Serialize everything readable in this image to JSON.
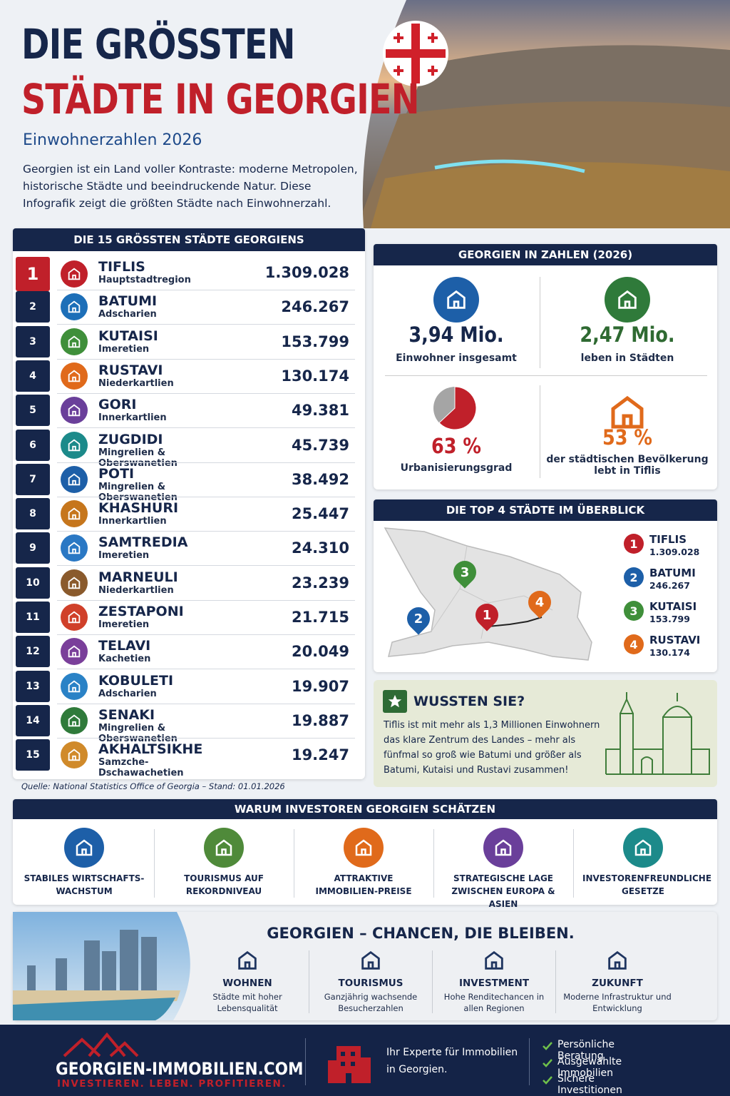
{
  "header": {
    "title_line1": "DIE GRÖSSTEN",
    "title_line2": "STÄDTE IN GEORGIEN",
    "subtitle": "Einwohnerzahlen 2026",
    "intro": "Georgien ist ein Land voller Kontraste: moderne Metropolen, historische Städte und beeindruckende Natur. Diese Infografik zeigt die größten Städte nach Einwohnerzahl."
  },
  "ranking": {
    "title": "DIE 15 GRÖSSTEN STÄDTE GEORGIENS",
    "rows": [
      {
        "rank": 1,
        "name": "TIFLIS",
        "region": "Hauptstadtregion",
        "population": "1.309.028"
      },
      {
        "rank": 2,
        "name": "BATUMI",
        "region": "Adscharien",
        "population": "246.267"
      },
      {
        "rank": 3,
        "name": "KUTAISI",
        "region": "Imeretien",
        "population": "153.799"
      },
      {
        "rank": 4,
        "name": "RUSTAVI",
        "region": "Niederkartlien",
        "population": "130.174"
      },
      {
        "rank": 5,
        "name": "GORI",
        "region": "Innerkartlien",
        "population": "49.381"
      },
      {
        "rank": 6,
        "name": "ZUGDIDI",
        "region": "Mingrelien & Oberswanetien",
        "population": "45.739"
      },
      {
        "rank": 7,
        "name": "POTI",
        "region": "Mingrelien & Oberswanetien",
        "population": "38.492"
      },
      {
        "rank": 8,
        "name": "KHASHURI",
        "region": "Innerkartlien",
        "population": "25.447"
      },
      {
        "rank": 9,
        "name": "SAMTREDIA",
        "region": "Imeretien",
        "population": "24.310"
      },
      {
        "rank": 10,
        "name": "MARNEULI",
        "region": "Niederkartlien",
        "population": "23.239"
      },
      {
        "rank": 11,
        "name": "ZESTAPONI",
        "region": "Imeretien",
        "population": "21.715"
      },
      {
        "rank": 12,
        "name": "TELAVI",
        "region": "Kachetien",
        "population": "20.049"
      },
      {
        "rank": 13,
        "name": "KOBULETI",
        "region": "Adscharien",
        "population": "19.907"
      },
      {
        "rank": 14,
        "name": "SENAKI",
        "region": "Mingrelien & Oberswanetien",
        "population": "19.887"
      },
      {
        "rank": 15,
        "name": "AKHALTSIKHE",
        "region": "Samzche-Dschawachetien",
        "population": "19.247"
      }
    ],
    "source": "Quelle: National Statistics Office of Georgia – Stand: 01.01.2026"
  },
  "facts": {
    "title": "GEORGIEN IN ZAHLEN (2026)",
    "items": [
      {
        "value": "3,94 Mio.",
        "label": "Einwohner insgesamt"
      },
      {
        "value": "2,47 Mio.",
        "label": "leben in Städten"
      },
      {
        "value": 63,
        "value_label": "63 %",
        "label": "Urbanisierungsgrad"
      },
      {
        "value": 53,
        "value_label": "53 %",
        "label": "der städtischen Bevölkerung lebt in Tiflis"
      }
    ]
  },
  "top4": {
    "title": "DIE TOP 4 STÄDTE IM ÜBERBLICK",
    "cities": [
      {
        "rank": 1,
        "name": "TIFLIS",
        "population": "1.309.028"
      },
      {
        "rank": 2,
        "name": "BATUMI",
        "population": "246.267"
      },
      {
        "rank": 3,
        "name": "KUTAISI",
        "population": "153.799"
      },
      {
        "rank": 4,
        "name": "RUSTAVI",
        "population": "130.174"
      }
    ]
  },
  "did_you_know": {
    "title": "WUSSTEN SIE?",
    "text": "Tiflis ist mit mehr als 1,3 Millionen Einwohnern das klare Zentrum des Landes – mehr als fünfmal so groß wie Batumi und größer als Batumi, Kutaisi und Rustavi zusammen!"
  },
  "investors": {
    "title": "WARUM INVESTOREN GEORGIEN SCHÄTZEN",
    "items": [
      "STABILES WIRTSCHAFTS-WACHSTUM",
      "TOURISMUS AUF REKORDNIVEAU",
      "ATTRAKTIVE IMMOBILIEN-PREISE",
      "STRATEGISCHE LAGE ZWISCHEN EUROPA & ASIEN",
      "INVESTORENFREUNDLICHE GESETZE"
    ]
  },
  "chances": {
    "title": "GEORGIEN – CHANCEN, DIE BLEIBEN.",
    "items": [
      {
        "title": "WOHNEN",
        "text": "Städte mit hoher Lebensqualität"
      },
      {
        "title": "TOURISMUS",
        "text": "Ganzjährig wachsende Besucherzahlen"
      },
      {
        "title": "INVESTMENT",
        "text": "Hohe Renditechancen in allen Regionen"
      },
      {
        "title": "ZUKUNFT",
        "text": "Moderne Infrastruktur und Entwicklung"
      }
    ]
  },
  "footer": {
    "brand": "GEORGIEN-IMMOBILIEN.COM",
    "slogan": "INVESTIEREN. LEBEN. PROFITIEREN.",
    "expert": "Ihr Experte für Immobilien in Georgien.",
    "bullets": [
      "Persönliche Beratung",
      "Ausgewählte Immobilien",
      "Sichere Investitionen"
    ]
  }
}
